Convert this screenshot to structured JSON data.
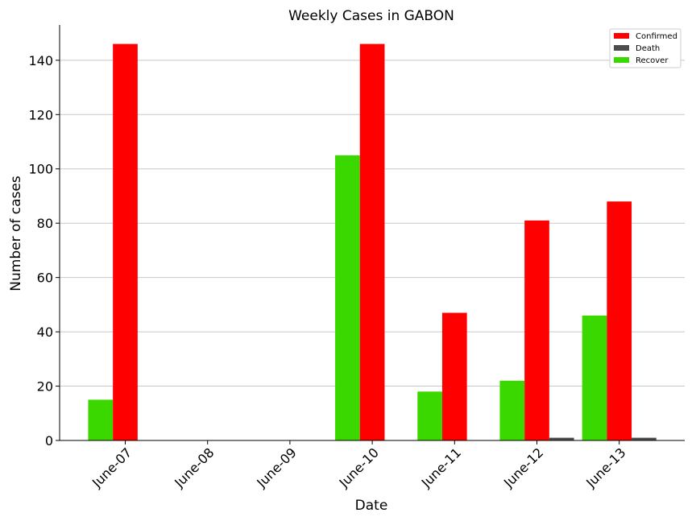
{
  "chart_data": {
    "type": "bar",
    "title": "Weekly Cases in GABON",
    "xlabel": "Date",
    "ylabel": "Number of cases",
    "categories": [
      "June-07",
      "June-08",
      "June-09",
      "June-10",
      "June-11",
      "June-12",
      "June-13"
    ],
    "series": [
      {
        "name": "Recover",
        "color": "#3bd800",
        "values": [
          15,
          0,
          0,
          105,
          18,
          22,
          46
        ]
      },
      {
        "name": "Confirmed",
        "color": "#ff0000",
        "values": [
          146,
          0,
          0,
          146,
          47,
          81,
          88
        ]
      },
      {
        "name": "Death",
        "color": "#4d4d4d",
        "values": [
          0,
          0,
          0,
          0,
          0,
          1,
          1
        ]
      }
    ],
    "legend_order": [
      "Confirmed",
      "Death",
      "Recover"
    ],
    "legend_position": "top-right",
    "ylim": [
      0,
      153
    ],
    "yticks": [
      0,
      20,
      40,
      60,
      80,
      100,
      120,
      140
    ],
    "grid": "horizontal"
  }
}
